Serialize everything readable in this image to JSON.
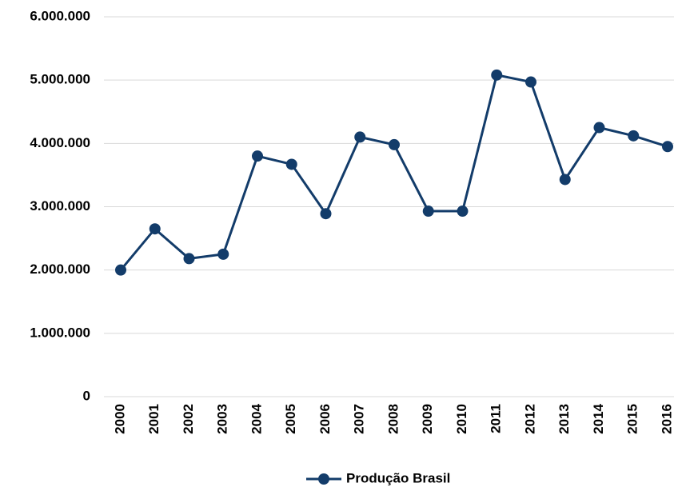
{
  "chart_data": {
    "type": "line",
    "categories": [
      "2000",
      "2001",
      "2002",
      "2003",
      "2004",
      "2005",
      "2006",
      "2007",
      "2008",
      "2009",
      "2010",
      "2011",
      "2012",
      "2013",
      "2014",
      "2015",
      "2016"
    ],
    "series": [
      {
        "name": "Produção Brasil",
        "color": "#133c6a",
        "values": [
          2000000,
          2650000,
          2180000,
          2250000,
          3800000,
          3670000,
          2890000,
          4100000,
          3980000,
          2930000,
          2930000,
          5080000,
          4970000,
          3430000,
          4250000,
          4120000,
          3950000
        ]
      }
    ],
    "ylim": [
      0,
      6000000
    ],
    "yticks": [
      0,
      {
        "value": 1000000,
        "label": "1.000.000"
      },
      {
        "value": 2000000,
        "label": "2.000.000"
      },
      {
        "value": 3000000,
        "label": "3.000.000"
      },
      {
        "value": 4000000,
        "label": "4.000.000"
      },
      {
        "value": 5000000,
        "label": "5.000.000"
      },
      {
        "value": 6000000,
        "label": "6.000.000"
      }
    ],
    "grid": true,
    "legend": "bottom"
  }
}
